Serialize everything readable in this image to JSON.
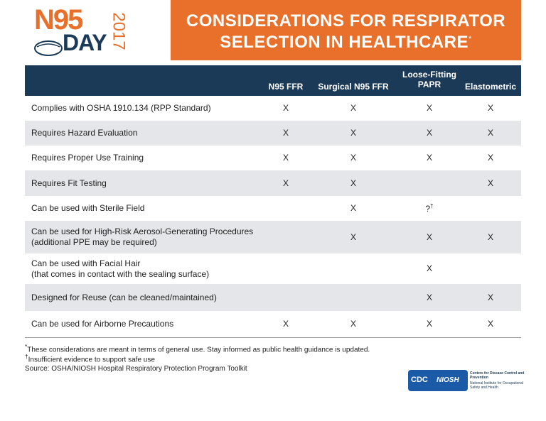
{
  "header": {
    "logo": {
      "top": "N95",
      "bottom": "DAY",
      "year": "2017"
    },
    "title": [
      "CONSIDERATIONS FOR RESPIRATOR",
      "SELECTION IN HEALTHCARE"
    ],
    "title_mark": "*"
  },
  "table": {
    "columns": [
      "N95 FFR",
      "Surgical N95 FFR",
      "Loose-Fitting PAPR",
      "Elastometric"
    ],
    "rows": [
      {
        "label": [
          "Complies with OSHA 1910.134 (RPP Standard)"
        ],
        "cells": [
          "X",
          "X",
          "X",
          "X"
        ]
      },
      {
        "label": [
          "Requires Hazard Evaluation"
        ],
        "cells": [
          "X",
          "X",
          "X",
          "X"
        ]
      },
      {
        "label": [
          "Requires Proper Use Training"
        ],
        "cells": [
          "X",
          "X",
          "X",
          "X"
        ]
      },
      {
        "label": [
          "Requires Fit Testing"
        ],
        "cells": [
          "X",
          "X",
          null,
          "X"
        ]
      },
      {
        "label": [
          "Can be used with Sterile Field"
        ],
        "cells": [
          null,
          "X",
          {
            "text": "?",
            "mark": "†"
          },
          null
        ]
      },
      {
        "label": [
          "Can be used for High-Risk Aerosol-Generating Procedures",
          "(additional PPE may be required)"
        ],
        "cells": [
          null,
          "X",
          "X",
          "X"
        ]
      },
      {
        "label": [
          "Can be used with Facial Hair",
          "(that comes in contact with the sealing surface)"
        ],
        "cells": [
          null,
          null,
          "X",
          null
        ]
      },
      {
        "label": [
          "Designed for Reuse (can be cleaned/maintained)"
        ],
        "cells": [
          null,
          null,
          "X",
          "X"
        ]
      },
      {
        "label": [
          "Can be used for Airborne Precautions"
        ],
        "cells": [
          "X",
          "X",
          "X",
          "X"
        ]
      }
    ]
  },
  "footnotes": [
    {
      "mark": "*",
      "text": "These considerations are meant in terms of general use. Stay informed as public health guidance is updated."
    },
    {
      "mark": "†",
      "text": "Insufficient evidence to support safe use"
    }
  ],
  "source": "Source: OSHA/NIOSH Hospital Respiratory Protection Program Toolkit",
  "cdc": {
    "badge": "CDC",
    "niosh": "NIOSH",
    "agency": "Centers for Disease Control and Prevention",
    "institute": "National Institute for Occupational Safety and Health"
  }
}
